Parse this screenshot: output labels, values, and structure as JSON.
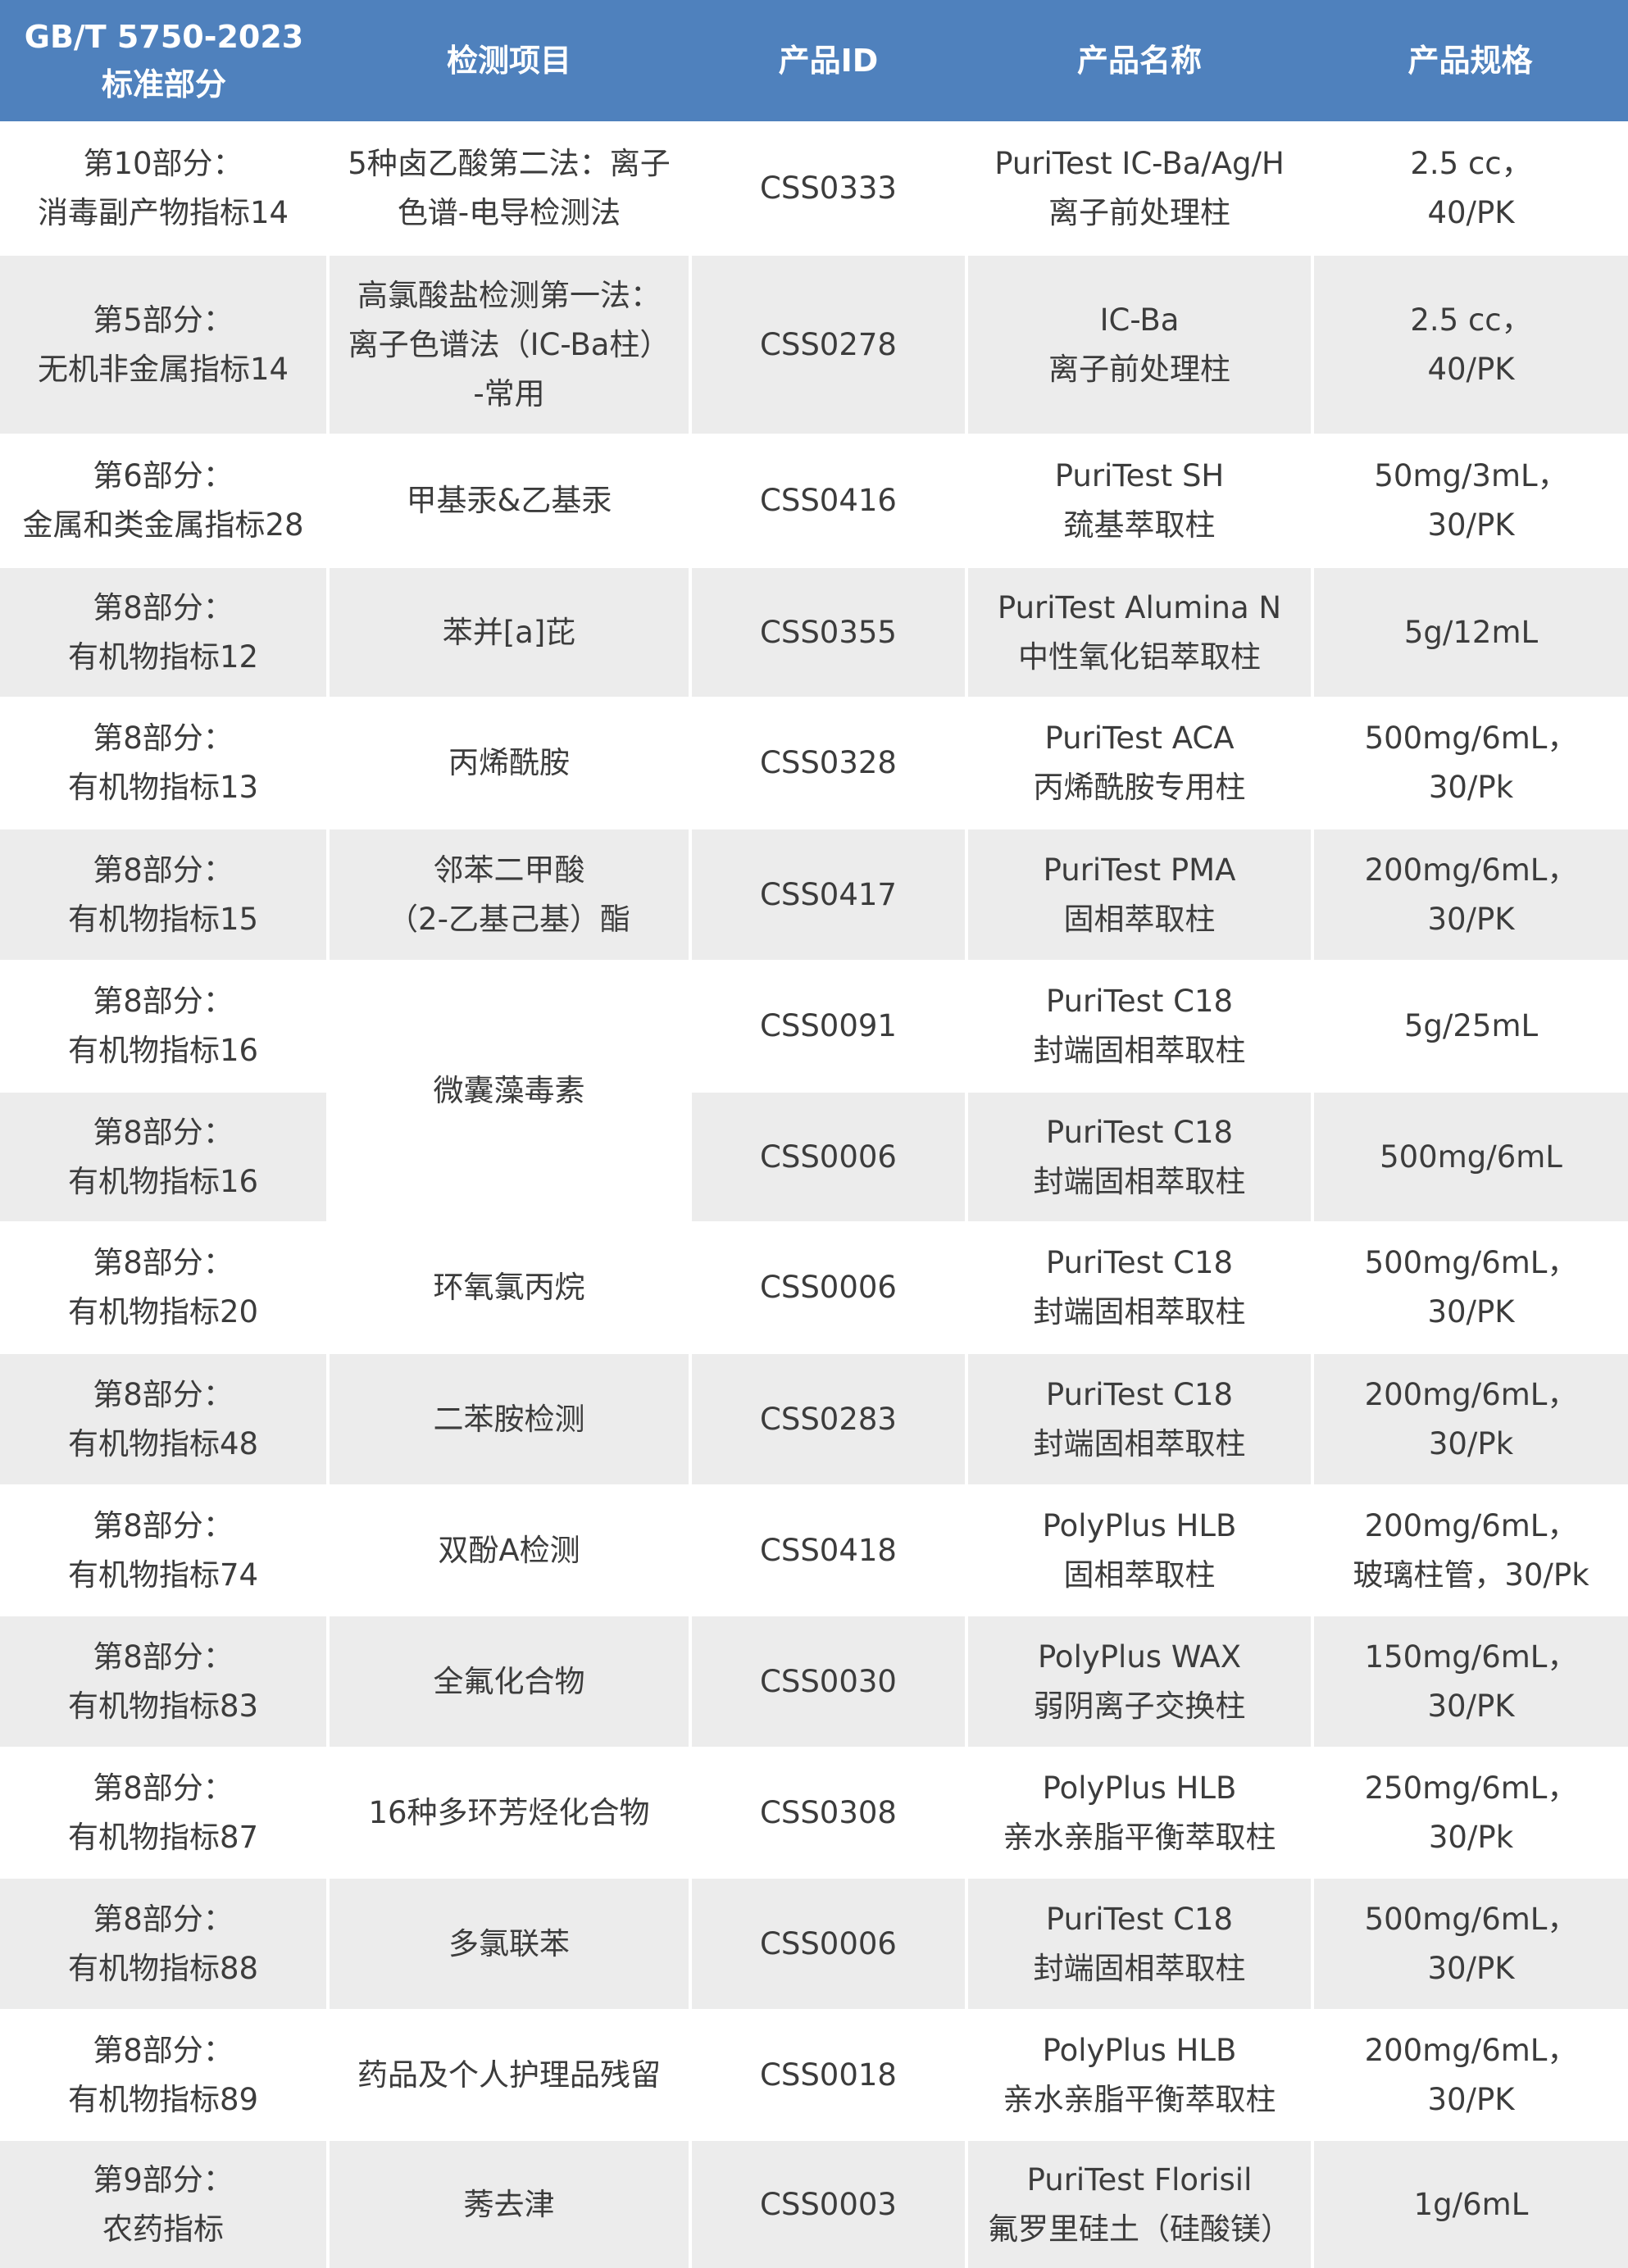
{
  "colors": {
    "header_bg": "#4f81bd",
    "stripe": "#ececec",
    "text": "#3c3c3c"
  },
  "headers": [
    "GB/T 5750-2023\n标准部分",
    "检测项目",
    "产品ID",
    "产品名称",
    "产品规格"
  ],
  "rows": [
    {
      "part": "第10部分：\n消毒副产物指标14",
      "item": "5种卤乙酸第二法：离子\n色谱-电导检测法",
      "id": "CSS0333",
      "name": "PuriTest IC-Ba/Ag/H\n离子前处理柱",
      "spec": "2.5 cc，\n40/PK"
    },
    {
      "part": "第5部分：\n无机非金属指标14",
      "item": "高氯酸盐检测第一法：\n离子色谱法（IC-Ba柱）\n-常用",
      "id": "CSS0278",
      "name": "IC-Ba\n离子前处理柱",
      "spec": "2.5 cc，\n40/PK"
    },
    {
      "part": "第6部分：\n金属和类金属指标28",
      "item": "甲基汞&乙基汞",
      "id": "CSS0416",
      "name": "PuriTest SH\n巯基萃取柱",
      "spec": "50mg/3mL，\n30/PK"
    },
    {
      "part": "第8部分：\n有机物指标12",
      "item": "苯并[a]芘",
      "id": "CSS0355",
      "name": "PuriTest Alumina N\n中性氧化铝萃取柱",
      "spec": "5g/12mL"
    },
    {
      "part": "第8部分：\n有机物指标13",
      "item": "丙烯酰胺",
      "id": "CSS0328",
      "name": "PuriTest ACA\n丙烯酰胺专用柱",
      "spec": "500mg/6mL，\n30/Pk"
    },
    {
      "part": "第8部分：\n有机物指标15",
      "item": "邻苯二甲酸\n（2-乙基己基）酯",
      "id": "CSS0417",
      "name": "PuriTest PMA\n固相萃取柱",
      "spec": "200mg/6mL，\n30/PK"
    },
    {
      "part": "第8部分：\n有机物指标16",
      "item": "微囊藻毒素",
      "id": "CSS0091",
      "name": "PuriTest C18\n封端固相萃取柱",
      "spec": "5g/25mL"
    },
    {
      "part": "第8部分：\n有机物指标16",
      "id": "CSS0006",
      "name": "PuriTest C18\n封端固相萃取柱",
      "spec": "500mg/6mL"
    },
    {
      "part": "第8部分：\n有机物指标20",
      "item": "环氧氯丙烷",
      "id": "CSS0006",
      "name": "PuriTest C18\n封端固相萃取柱",
      "spec": "500mg/6mL，\n30/PK"
    },
    {
      "part": "第8部分：\n有机物指标48",
      "item": "二苯胺检测",
      "id": "CSS0283",
      "name": "PuriTest C18\n封端固相萃取柱",
      "spec": "200mg/6mL，\n30/Pk"
    },
    {
      "part": "第8部分：\n有机物指标74",
      "item": "双酚A检测",
      "id": "CSS0418",
      "name": "PolyPlus HLB\n固相萃取柱",
      "spec": "200mg/6mL，\n玻璃柱管，30/Pk"
    },
    {
      "part": "第8部分：\n有机物指标83",
      "item": "全氟化合物",
      "id": "CSS0030",
      "name": "PolyPlus WAX\n弱阴离子交换柱",
      "spec": "150mg/6mL，\n30/PK"
    },
    {
      "part": "第8部分：\n有机物指标87",
      "item": "16种多环芳烃化合物",
      "id": "CSS0308",
      "name": "PolyPlus HLB\n亲水亲脂平衡萃取柱",
      "spec": "250mg/6mL，\n30/Pk"
    },
    {
      "part": "第8部分：\n有机物指标88",
      "item": "多氯联苯",
      "id": "CSS0006",
      "name": "PuriTest C18\n封端固相萃取柱",
      "spec": "500mg/6mL，\n30/PK"
    },
    {
      "part": "第8部分：\n有机物指标89",
      "item": "药品及个人护理品残留",
      "id": "CSS0018",
      "name": "PolyPlus HLB\n亲水亲脂平衡萃取柱",
      "spec": "200mg/6mL，\n30/PK"
    },
    {
      "part": "第9部分：\n农药指标",
      "item": "莠去津",
      "id": "CSS0003",
      "name": "PuriTest Florisil\n氟罗里硅土（硅酸镁）",
      "spec": "1g/6mL"
    }
  ]
}
